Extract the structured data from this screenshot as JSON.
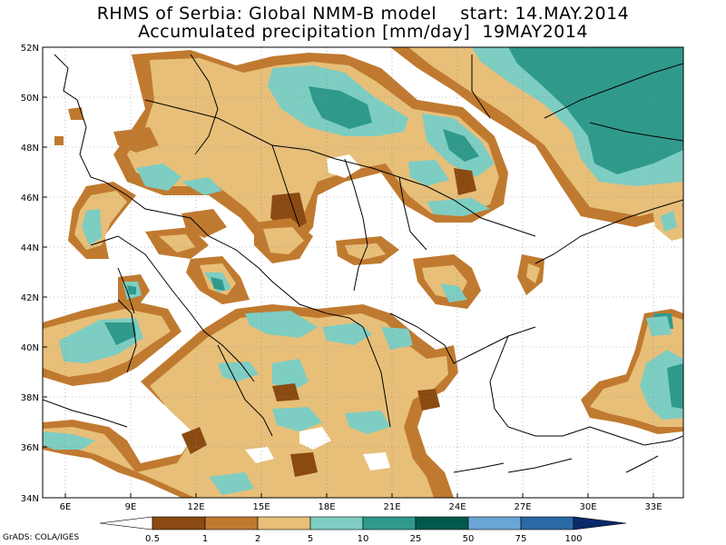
{
  "header": {
    "line1": "RHMS of Serbia: Global NMM-B model    start: 14.MAY.2014",
    "line2": "Accumulated precipitation [mm/day]  19MAY2014"
  },
  "axes": {
    "lat_labels": [
      "52N",
      "50N",
      "48N",
      "46N",
      "44N",
      "42N",
      "40N",
      "38N",
      "36N",
      "34N"
    ],
    "lon_labels": [
      "6E",
      "9E",
      "12E",
      "15E",
      "18E",
      "21E",
      "24E",
      "27E",
      "30E",
      "33E"
    ]
  },
  "legend": {
    "labels": [
      "0.5",
      "1",
      "2",
      "5",
      "10",
      "25",
      "50",
      "75",
      "100"
    ],
    "colors": [
      "#ffffff",
      "#8b4a12",
      "#c07a30",
      "#e7bf79",
      "#7ecdc2",
      "#2f9a8c",
      "#00594c",
      "#6aa6d6",
      "#2a6aa6",
      "#0a2a6a"
    ]
  },
  "credit": "GrADS: COLA/IGES",
  "colors": {
    "light_brown": "#e7bf79",
    "mid_brown": "#c07a30",
    "dark_brown": "#8b4a12",
    "light_teal": "#7ecdc2",
    "mid_teal": "#2f9a8c",
    "dark_teal": "#00594c"
  }
}
